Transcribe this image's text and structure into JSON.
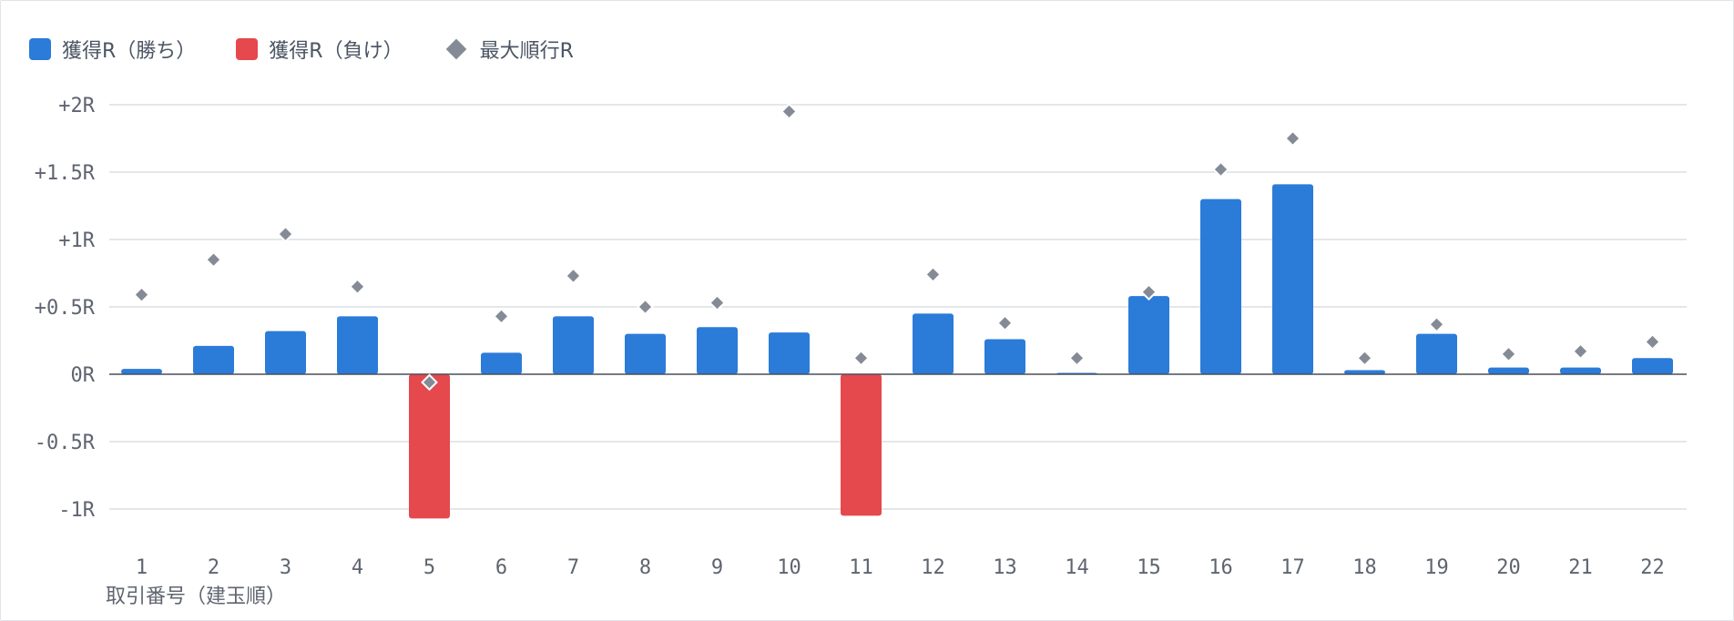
{
  "chart_data": {
    "type": "bar",
    "xlabel": "取引番号（建玉順）",
    "ylabel": "",
    "ylim": [
      -1.25,
      2.0
    ],
    "yticks": [
      2,
      1.5,
      1,
      0.5,
      0,
      -0.5,
      -1
    ],
    "ytick_labels": [
      "+2R",
      "+1.5R",
      "+1R",
      "+0.5R",
      "0R",
      "-0.5R",
      "-1R"
    ],
    "categories": [
      "1",
      "2",
      "3",
      "4",
      "5",
      "6",
      "7",
      "8",
      "9",
      "10",
      "11",
      "12",
      "13",
      "14",
      "15",
      "16",
      "17",
      "18",
      "19",
      "20",
      "21",
      "22"
    ],
    "series": [
      {
        "name": "獲得R（勝ち）",
        "type": "bar",
        "color": "#2b7bd9",
        "values": [
          0.04,
          0.21,
          0.32,
          0.43,
          null,
          0.16,
          0.43,
          0.3,
          0.35,
          0.31,
          null,
          0.45,
          0.26,
          0.01,
          0.58,
          1.3,
          1.41,
          0.03,
          0.3,
          0.05,
          0.05,
          0.12
        ]
      },
      {
        "name": "獲得R（負け）",
        "type": "bar",
        "color": "#e5484d",
        "values": [
          null,
          null,
          null,
          null,
          -1.07,
          null,
          null,
          null,
          null,
          null,
          -1.05,
          null,
          null,
          null,
          null,
          null,
          null,
          null,
          null,
          null,
          null,
          null
        ]
      },
      {
        "name": "最大順行R",
        "type": "scatter",
        "marker": "diamond",
        "color": "#858b96",
        "values": [
          0.59,
          0.85,
          1.04,
          0.65,
          -0.06,
          0.43,
          0.73,
          0.5,
          0.53,
          1.95,
          0.12,
          0.74,
          0.38,
          0.12,
          0.61,
          1.52,
          1.75,
          0.12,
          0.37,
          0.15,
          0.17,
          0.24
        ]
      }
    ],
    "grid": true,
    "legend_position": "top-left"
  }
}
